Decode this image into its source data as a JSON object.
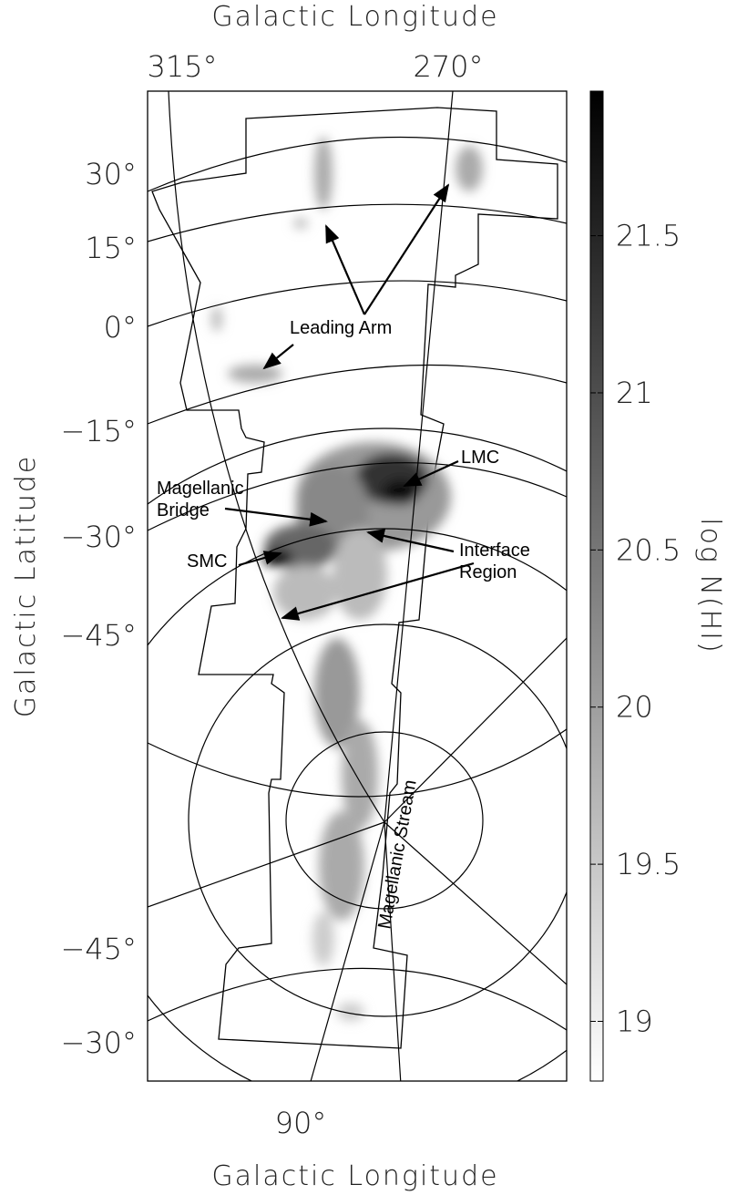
{
  "chart_data": {
    "type": "map",
    "x_label_top": "Galactic Longitude",
    "x_label_bottom": "Galactic Longitude",
    "y_label": "Galactic Latitude",
    "top_lon_labels": [
      "315°",
      "270°"
    ],
    "bottom_lon_labels": [
      "90°"
    ],
    "lat_labels": [
      "30°",
      "15°",
      "0°",
      "−15°",
      "−30°",
      "−45°",
      "−45°",
      "−30°"
    ],
    "annotations": [
      {
        "lines": [
          "Leading Arm"
        ]
      },
      {
        "lines": [
          "LMC"
        ]
      },
      {
        "lines": [
          "Magellanic",
          "Bridge"
        ]
      },
      {
        "lines": [
          "SMC"
        ]
      },
      {
        "lines": [
          "Interface",
          "Region"
        ]
      },
      {
        "lines": [
          "Magellanic Stream"
        ]
      }
    ],
    "colorbar": {
      "label": "log N(HI)",
      "lim": [
        18.81,
        21.96
      ],
      "ticks": [
        19,
        19.5,
        20,
        20.5,
        21,
        21.5
      ],
      "colors": [
        "#ffffff",
        "#000000"
      ]
    }
  }
}
